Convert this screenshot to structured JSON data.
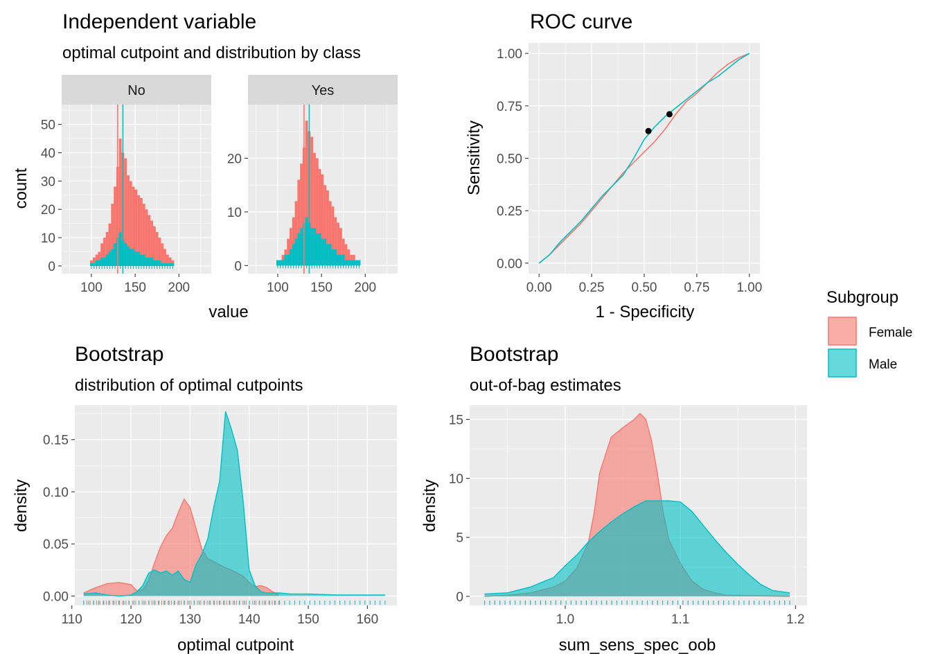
{
  "colors": {
    "female": "#F8766D",
    "male": "#00BFC4",
    "panel_bg": "#EBEBEB",
    "strip_bg": "#D9D9D9"
  },
  "panels": {
    "hist": {
      "title": "Independent variable",
      "subtitle": "optimal cutpoint and distribution by class",
      "xlabel": "value",
      "ylabel": "count",
      "facets": [
        "No",
        "Yes"
      ]
    },
    "roc": {
      "title": "ROC curve",
      "xlabel": "1 - Specificity",
      "ylabel": "Sensitivity"
    },
    "boot1": {
      "title": "Bootstrap",
      "subtitle": "distribution of optimal cutpoints",
      "xlabel": "optimal cutpoint",
      "ylabel": "density"
    },
    "boot2": {
      "title": "Bootstrap",
      "subtitle": "out-of-bag estimates",
      "xlabel": "sum_sens_spec_oob",
      "ylabel": "density"
    }
  },
  "legend": {
    "title": "Subgroup",
    "items": [
      "Female",
      "Male"
    ]
  },
  "chart_data": [
    {
      "type": "bar",
      "panel": "hist",
      "facet": "No",
      "xlim": [
        66,
        237
      ],
      "ylim": [
        -2.7,
        57
      ],
      "xticks": [
        100,
        150,
        200
      ],
      "yticks": [
        0,
        10,
        20,
        30,
        40,
        50
      ],
      "cutpoints": {
        "Female": 130,
        "Male": 136
      },
      "x": [
        100,
        103,
        106,
        109,
        112,
        115,
        118,
        121,
        124,
        127,
        130,
        133,
        136,
        139,
        142,
        145,
        148,
        151,
        154,
        157,
        160,
        163,
        166,
        169,
        172,
        175,
        178,
        181,
        184,
        187,
        190,
        193
      ],
      "series": [
        {
          "name": "Female",
          "values": [
            2,
            3,
            4,
            5,
            8,
            10,
            12,
            15,
            22,
            28,
            35,
            45,
            40,
            38,
            32,
            30,
            28,
            27,
            25,
            24,
            22,
            20,
            18,
            16,
            14,
            12,
            10,
            8,
            6,
            4,
            3,
            2
          ]
        },
        {
          "name": "Male",
          "values": [
            1,
            1,
            2,
            2,
            3,
            3,
            4,
            5,
            6,
            8,
            10,
            12,
            9,
            8,
            7,
            6,
            6,
            5,
            5,
            4,
            4,
            3,
            3,
            3,
            2,
            2,
            2,
            1,
            1,
            1,
            1,
            1
          ]
        }
      ]
    },
    {
      "type": "bar",
      "panel": "hist",
      "facet": "Yes",
      "xlim": [
        66,
        237
      ],
      "ylim": [
        -1.5,
        30
      ],
      "xticks": [
        100,
        150,
        200
      ],
      "yticks": [
        0,
        10,
        20
      ],
      "cutpoints": {
        "Female": 130,
        "Male": 136
      },
      "x": [
        100,
        103,
        106,
        109,
        112,
        115,
        118,
        121,
        124,
        127,
        130,
        133,
        136,
        139,
        142,
        145,
        148,
        151,
        154,
        157,
        160,
        163,
        166,
        169,
        172,
        175,
        178,
        181,
        184,
        187,
        190,
        193
      ],
      "series": [
        {
          "name": "Female",
          "values": [
            1,
            1,
            2,
            3,
            5,
            7,
            9,
            12,
            16,
            19,
            22,
            27,
            25,
            24,
            21,
            20,
            18,
            17,
            15,
            14,
            12,
            11,
            9,
            8,
            7,
            5,
            4,
            3,
            2,
            2,
            1,
            1
          ]
        },
        {
          "name": "Male",
          "values": [
            1,
            1,
            1,
            2,
            2,
            3,
            4,
            5,
            6,
            7,
            8,
            9,
            8,
            7,
            7,
            6,
            6,
            5,
            5,
            4,
            4,
            3,
            3,
            2,
            2,
            2,
            1,
            1,
            1,
            1,
            1,
            1
          ]
        }
      ]
    },
    {
      "type": "line",
      "panel": "roc",
      "xlim": [
        -0.05,
        1.05
      ],
      "ylim": [
        -0.05,
        1.05
      ],
      "xticks": [
        0.0,
        0.25,
        0.5,
        0.75,
        1.0
      ],
      "yticks": [
        0.0,
        0.25,
        0.5,
        0.75,
        1.0
      ],
      "series": [
        {
          "name": "Female",
          "x": [
            0,
            0.05,
            0.1,
            0.15,
            0.2,
            0.25,
            0.3,
            0.35,
            0.4,
            0.45,
            0.5,
            0.55,
            0.6,
            0.65,
            0.7,
            0.75,
            0.8,
            0.85,
            0.9,
            0.95,
            1.0
          ],
          "y": [
            0,
            0.04,
            0.09,
            0.14,
            0.19,
            0.25,
            0.31,
            0.37,
            0.43,
            0.48,
            0.53,
            0.58,
            0.64,
            0.71,
            0.77,
            0.81,
            0.86,
            0.91,
            0.95,
            0.98,
            1.0
          ],
          "optimal": {
            "x": 0.62,
            "y": 0.71
          }
        },
        {
          "name": "Male",
          "x": [
            0,
            0.05,
            0.1,
            0.15,
            0.2,
            0.25,
            0.3,
            0.35,
            0.4,
            0.45,
            0.5,
            0.55,
            0.6,
            0.65,
            0.7,
            0.75,
            0.8,
            0.85,
            0.9,
            0.95,
            1.0
          ],
          "y": [
            0,
            0.04,
            0.1,
            0.15,
            0.2,
            0.26,
            0.32,
            0.37,
            0.42,
            0.5,
            0.59,
            0.65,
            0.7,
            0.74,
            0.78,
            0.82,
            0.86,
            0.89,
            0.93,
            0.97,
            1.0
          ],
          "optimal": {
            "x": 0.52,
            "y": 0.63
          }
        }
      ]
    },
    {
      "type": "area",
      "panel": "boot1",
      "xlim": [
        110.5,
        165
      ],
      "ylim": [
        -0.009,
        0.183
      ],
      "xticks": [
        110,
        120,
        130,
        140,
        150,
        160
      ],
      "yticks": [
        0.0,
        0.05,
        0.1,
        0.15
      ],
      "series": [
        {
          "name": "Female",
          "x": [
            112,
            114,
            116,
            118,
            120,
            121,
            122,
            123,
            124,
            125,
            126,
            127,
            128,
            129,
            130,
            131,
            132,
            133,
            134,
            135,
            136,
            137,
            138,
            139,
            140,
            141,
            142,
            143,
            144,
            145
          ],
          "values": [
            0.003,
            0.008,
            0.012,
            0.013,
            0.011,
            0.005,
            0.006,
            0.015,
            0.032,
            0.047,
            0.058,
            0.065,
            0.08,
            0.093,
            0.085,
            0.065,
            0.045,
            0.036,
            0.033,
            0.03,
            0.027,
            0.025,
            0.022,
            0.019,
            0.013,
            0.009,
            0.01,
            0.008,
            0.004,
            0.001
          ]
        },
        {
          "name": "Male",
          "x": [
            112,
            114,
            116,
            118,
            120,
            121,
            122,
            123,
            124,
            125,
            126,
            127,
            128,
            129,
            130,
            131,
            132,
            133,
            134,
            135,
            136,
            137,
            138,
            139,
            140,
            141,
            142,
            143,
            144,
            145,
            147,
            150,
            155,
            160,
            163
          ],
          "values": [
            0.002,
            0.003,
            0.001,
            0.0,
            0.001,
            0.004,
            0.01,
            0.022,
            0.025,
            0.022,
            0.024,
            0.02,
            0.024,
            0.016,
            0.013,
            0.03,
            0.04,
            0.055,
            0.085,
            0.11,
            0.177,
            0.16,
            0.14,
            0.09,
            0.025,
            0.01,
            0.004,
            0.003,
            0.003,
            0.003,
            0.002,
            0.002,
            0.001,
            0.001,
            0.001
          ]
        }
      ]
    },
    {
      "type": "area",
      "panel": "boot2",
      "xlim": [
        0.917,
        1.21
      ],
      "ylim": [
        -0.77,
        16.2
      ],
      "xticks": [
        1.0,
        1.1,
        1.2
      ],
      "yticks": [
        0,
        5,
        10,
        15
      ],
      "series": [
        {
          "name": "Female",
          "x": [
            0.93,
            0.95,
            0.97,
            0.99,
            1.0,
            1.01,
            1.02,
            1.025,
            1.03,
            1.04,
            1.05,
            1.06,
            1.065,
            1.07,
            1.075,
            1.08,
            1.085,
            1.09,
            1.1,
            1.11,
            1.12,
            1.13,
            1.14,
            1.16,
            1.18,
            1.195
          ],
          "values": [
            0,
            0.1,
            0.3,
            0.8,
            1.3,
            2.4,
            4.5,
            7.0,
            10.5,
            13.5,
            14.3,
            15.0,
            15.5,
            15.0,
            13.2,
            10.5,
            7.2,
            4.8,
            2.8,
            1.3,
            0.6,
            0.3,
            0.1,
            0.05,
            0.02,
            0
          ]
        },
        {
          "name": "Male",
          "x": [
            0.93,
            0.95,
            0.97,
            0.99,
            1.0,
            1.01,
            1.02,
            1.03,
            1.04,
            1.05,
            1.06,
            1.07,
            1.08,
            1.09,
            1.1,
            1.11,
            1.12,
            1.13,
            1.14,
            1.15,
            1.16,
            1.17,
            1.18,
            1.195
          ],
          "values": [
            0.2,
            0.3,
            0.8,
            1.6,
            2.6,
            3.5,
            4.6,
            5.5,
            6.3,
            7.0,
            7.6,
            8.1,
            8.1,
            8.1,
            8.0,
            7.2,
            6.0,
            4.8,
            3.7,
            2.7,
            1.8,
            1.0,
            0.5,
            0.3
          ]
        }
      ]
    }
  ]
}
